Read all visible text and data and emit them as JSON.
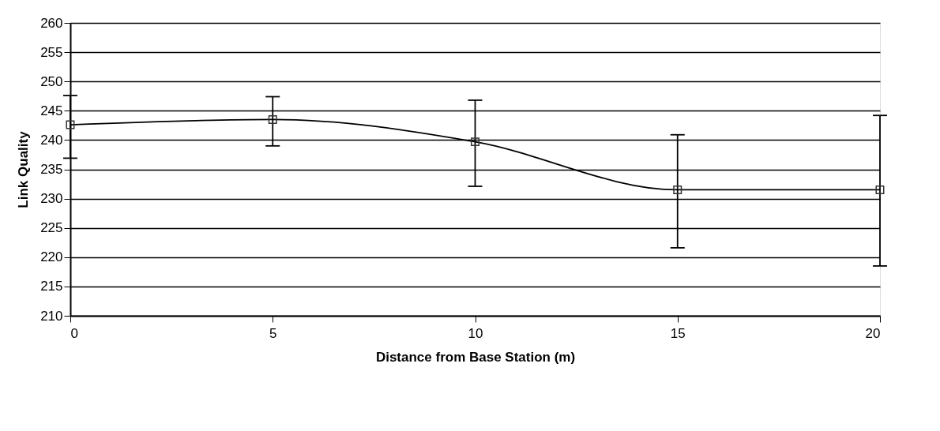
{
  "chart_data": {
    "type": "line",
    "xlabel": "Distance from Base Station (m)",
    "ylabel": "Link Quality",
    "x": [
      0,
      5,
      10,
      15,
      20
    ],
    "series": [
      {
        "color": "#000000",
        "values": [
          242.6,
          243.5,
          239.7,
          231.5,
          231.5
        ],
        "errors": [
          [
            236.9,
            247.6
          ],
          [
            239.0,
            247.4
          ],
          [
            232.1,
            246.8
          ],
          [
            221.6,
            240.9
          ],
          [
            218.5,
            244.2
          ]
        ]
      }
    ],
    "xlim": [
      0,
      20
    ],
    "xticks": [
      0,
      5,
      10,
      15,
      20
    ],
    "ylim": [
      210,
      260
    ],
    "yticks": [
      210,
      215,
      220,
      225,
      230,
      235,
      240,
      245,
      250,
      255,
      260
    ],
    "grid": "y",
    "marker": "square",
    "line_style": "solid"
  }
}
